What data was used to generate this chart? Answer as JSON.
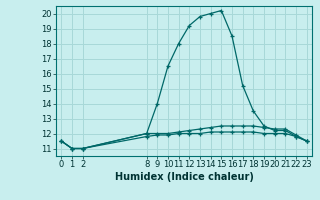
{
  "title": "",
  "xlabel": "Humidex (Indice chaleur)",
  "ylabel": "",
  "background_color": "#c8eeee",
  "line_color": "#006868",
  "grid_color": "#a8d8d8",
  "xticks": [
    0,
    1,
    2,
    8,
    9,
    10,
    11,
    12,
    13,
    14,
    15,
    16,
    17,
    18,
    19,
    20,
    21,
    22,
    23
  ],
  "yticks": [
    11,
    12,
    13,
    14,
    15,
    16,
    17,
    18,
    19,
    20
  ],
  "xlim": [
    -0.5,
    23.5
  ],
  "ylim": [
    10.5,
    20.5
  ],
  "series": [
    {
      "x": [
        0,
        1,
        2,
        8,
        9,
        10,
        11,
        12,
        13,
        14,
        15,
        16,
        17,
        18,
        19,
        20,
        21,
        22,
        23
      ],
      "y": [
        11.5,
        11.0,
        11.0,
        12.0,
        14.0,
        16.5,
        18.0,
        19.2,
        19.8,
        20.0,
        20.2,
        18.5,
        15.2,
        13.5,
        12.5,
        12.2,
        12.2,
        11.8,
        11.5
      ]
    },
    {
      "x": [
        0,
        1,
        2,
        8,
        9,
        10,
        11,
        12,
        13,
        14,
        15,
        16,
        17,
        18,
        19,
        20,
        21,
        22,
        23
      ],
      "y": [
        11.5,
        11.0,
        11.0,
        11.8,
        11.9,
        11.9,
        12.0,
        12.0,
        12.0,
        12.1,
        12.1,
        12.1,
        12.1,
        12.1,
        12.0,
        12.0,
        12.0,
        11.8,
        11.5
      ]
    },
    {
      "x": [
        0,
        1,
        2,
        8,
        9,
        10,
        11,
        12,
        13,
        14,
        15,
        16,
        17,
        18,
        19,
        20,
        21,
        22,
        23
      ],
      "y": [
        11.5,
        11.0,
        11.0,
        12.0,
        12.0,
        12.0,
        12.1,
        12.2,
        12.3,
        12.4,
        12.5,
        12.5,
        12.5,
        12.5,
        12.4,
        12.3,
        12.3,
        11.9,
        11.5
      ]
    }
  ],
  "tick_fontsize": 6,
  "xlabel_fontsize": 7
}
